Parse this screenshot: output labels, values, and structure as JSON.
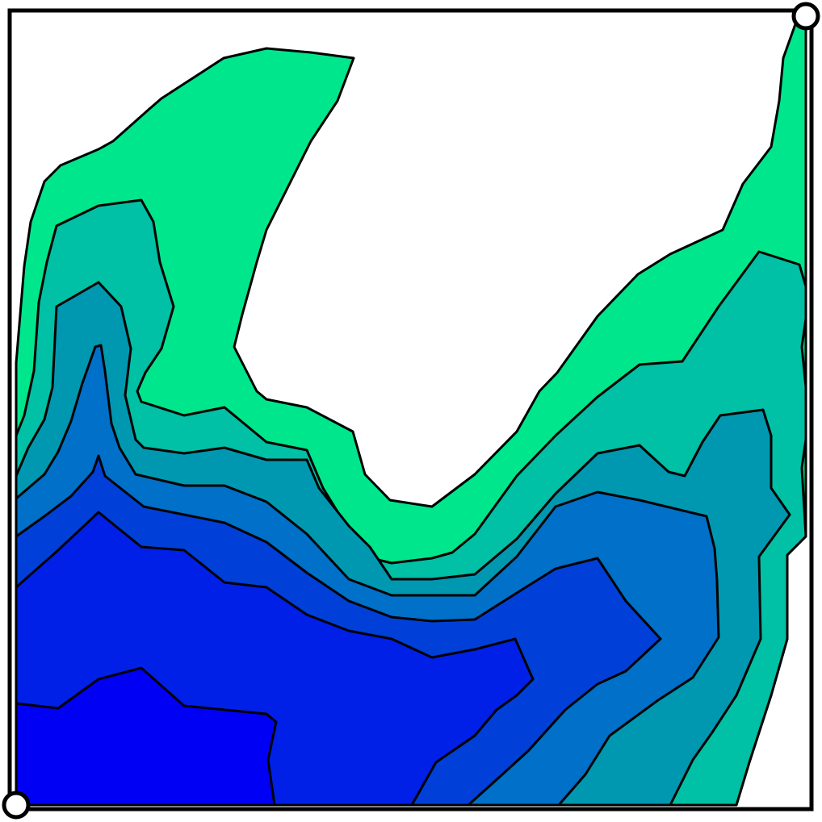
{
  "colors": {
    "background": "#ffffff",
    "outline": "#000000",
    "handle_fill": "#ffffff",
    "levels": [
      "#00e68c",
      "#00c0a5",
      "#0098b0",
      "#0070c8",
      "#0040d8",
      "#0020e8",
      "#0000f5"
    ]
  },
  "handles": [
    "corner-handle-top-right",
    "corner-handle-bottom-left"
  ]
}
